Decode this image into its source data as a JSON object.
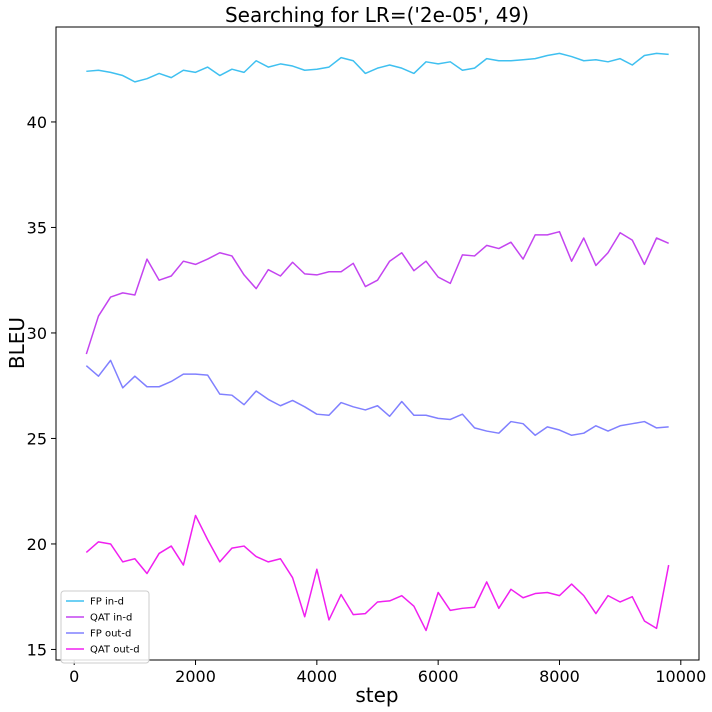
{
  "chart_data": {
    "type": "line",
    "title": "Searching for LR=('2e-05', 49)",
    "xlabel": "step",
    "ylabel": "BLEU",
    "xlim": [
      -300,
      10300
    ],
    "ylim": [
      14.5,
      44.5
    ],
    "xticks": [
      0,
      2000,
      4000,
      6000,
      8000,
      10000
    ],
    "yticks": [
      15,
      20,
      25,
      30,
      35,
      40
    ],
    "xtick_labels": [
      "0",
      "2000",
      "4000",
      "6000",
      "8000",
      "10000"
    ],
    "ytick_labels": [
      "15",
      "20",
      "25",
      "30",
      "35",
      "40"
    ],
    "grid": false,
    "legend_position": "lower-left",
    "x": [
      200,
      400,
      600,
      800,
      1000,
      1200,
      1400,
      1600,
      1800,
      2000,
      2200,
      2400,
      2600,
      2800,
      3000,
      3200,
      3400,
      3600,
      3800,
      4000,
      4200,
      4400,
      4600,
      4800,
      5000,
      5200,
      5400,
      5600,
      5800,
      6000,
      6200,
      6400,
      6600,
      6800,
      7000,
      7200,
      7400,
      7600,
      7800,
      8000,
      8200,
      8400,
      8600,
      8800,
      9000,
      9200,
      9400,
      9600,
      9800
    ],
    "series": [
      {
        "name": "FP in-d",
        "color": "#3fc0f0",
        "values": [
          42.4,
          42.45,
          42.35,
          42.2,
          41.9,
          42.05,
          42.3,
          42.1,
          42.45,
          42.35,
          42.6,
          42.2,
          42.5,
          42.35,
          42.9,
          42.6,
          42.75,
          42.65,
          42.45,
          42.5,
          42.6,
          43.05,
          42.9,
          42.3,
          42.55,
          42.7,
          42.55,
          42.3,
          42.85,
          42.75,
          42.85,
          42.45,
          42.55,
          43.0,
          42.9,
          42.9,
          42.95,
          43.0,
          43.15,
          43.25,
          43.1,
          42.9,
          42.95,
          42.85,
          43.0,
          42.7,
          43.15,
          43.25,
          43.2
        ]
      },
      {
        "name": "QAT in-d",
        "color": "#c444f0",
        "values": [
          29.0,
          30.8,
          31.7,
          31.9,
          31.8,
          33.5,
          32.5,
          32.7,
          33.4,
          33.25,
          33.5,
          33.8,
          33.65,
          32.75,
          32.1,
          33.0,
          32.7,
          33.35,
          32.8,
          32.75,
          32.9,
          32.9,
          33.3,
          32.2,
          32.5,
          33.4,
          33.8,
          32.95,
          33.4,
          32.65,
          32.35,
          33.7,
          33.65,
          34.15,
          34.0,
          34.3,
          33.5,
          34.65,
          34.65,
          34.8,
          33.4,
          34.5,
          33.2,
          33.8,
          34.75,
          34.4,
          33.25,
          34.5,
          34.25
        ]
      },
      {
        "name": "FP out-d",
        "color": "#8080ff",
        "values": [
          28.45,
          27.95,
          28.7,
          27.4,
          27.95,
          27.45,
          27.45,
          27.7,
          28.05,
          28.05,
          28.0,
          27.1,
          27.05,
          26.6,
          27.25,
          26.85,
          26.55,
          26.8,
          26.5,
          26.15,
          26.1,
          26.7,
          26.5,
          26.35,
          26.55,
          26.05,
          26.75,
          26.1,
          26.1,
          25.95,
          25.9,
          26.15,
          25.5,
          25.35,
          25.25,
          25.8,
          25.7,
          25.15,
          25.55,
          25.4,
          25.15,
          25.25,
          25.6,
          25.35,
          25.6,
          25.7,
          25.8,
          25.5,
          25.55
        ]
      },
      {
        "name": "QAT out-d",
        "color": "#f020f0",
        "values": [
          19.6,
          20.1,
          20.0,
          19.15,
          19.3,
          18.6,
          19.55,
          19.9,
          19.0,
          21.35,
          20.2,
          19.15,
          19.8,
          19.9,
          19.4,
          19.15,
          19.3,
          18.4,
          16.55,
          18.8,
          16.4,
          17.6,
          16.65,
          16.7,
          17.25,
          17.3,
          17.55,
          17.05,
          15.9,
          17.7,
          16.85,
          16.95,
          17.0,
          18.2,
          16.95,
          17.85,
          17.45,
          17.65,
          17.7,
          17.55,
          18.1,
          17.55,
          16.7,
          17.55,
          17.25,
          17.5,
          16.35,
          16.0,
          19.0
        ]
      }
    ]
  }
}
